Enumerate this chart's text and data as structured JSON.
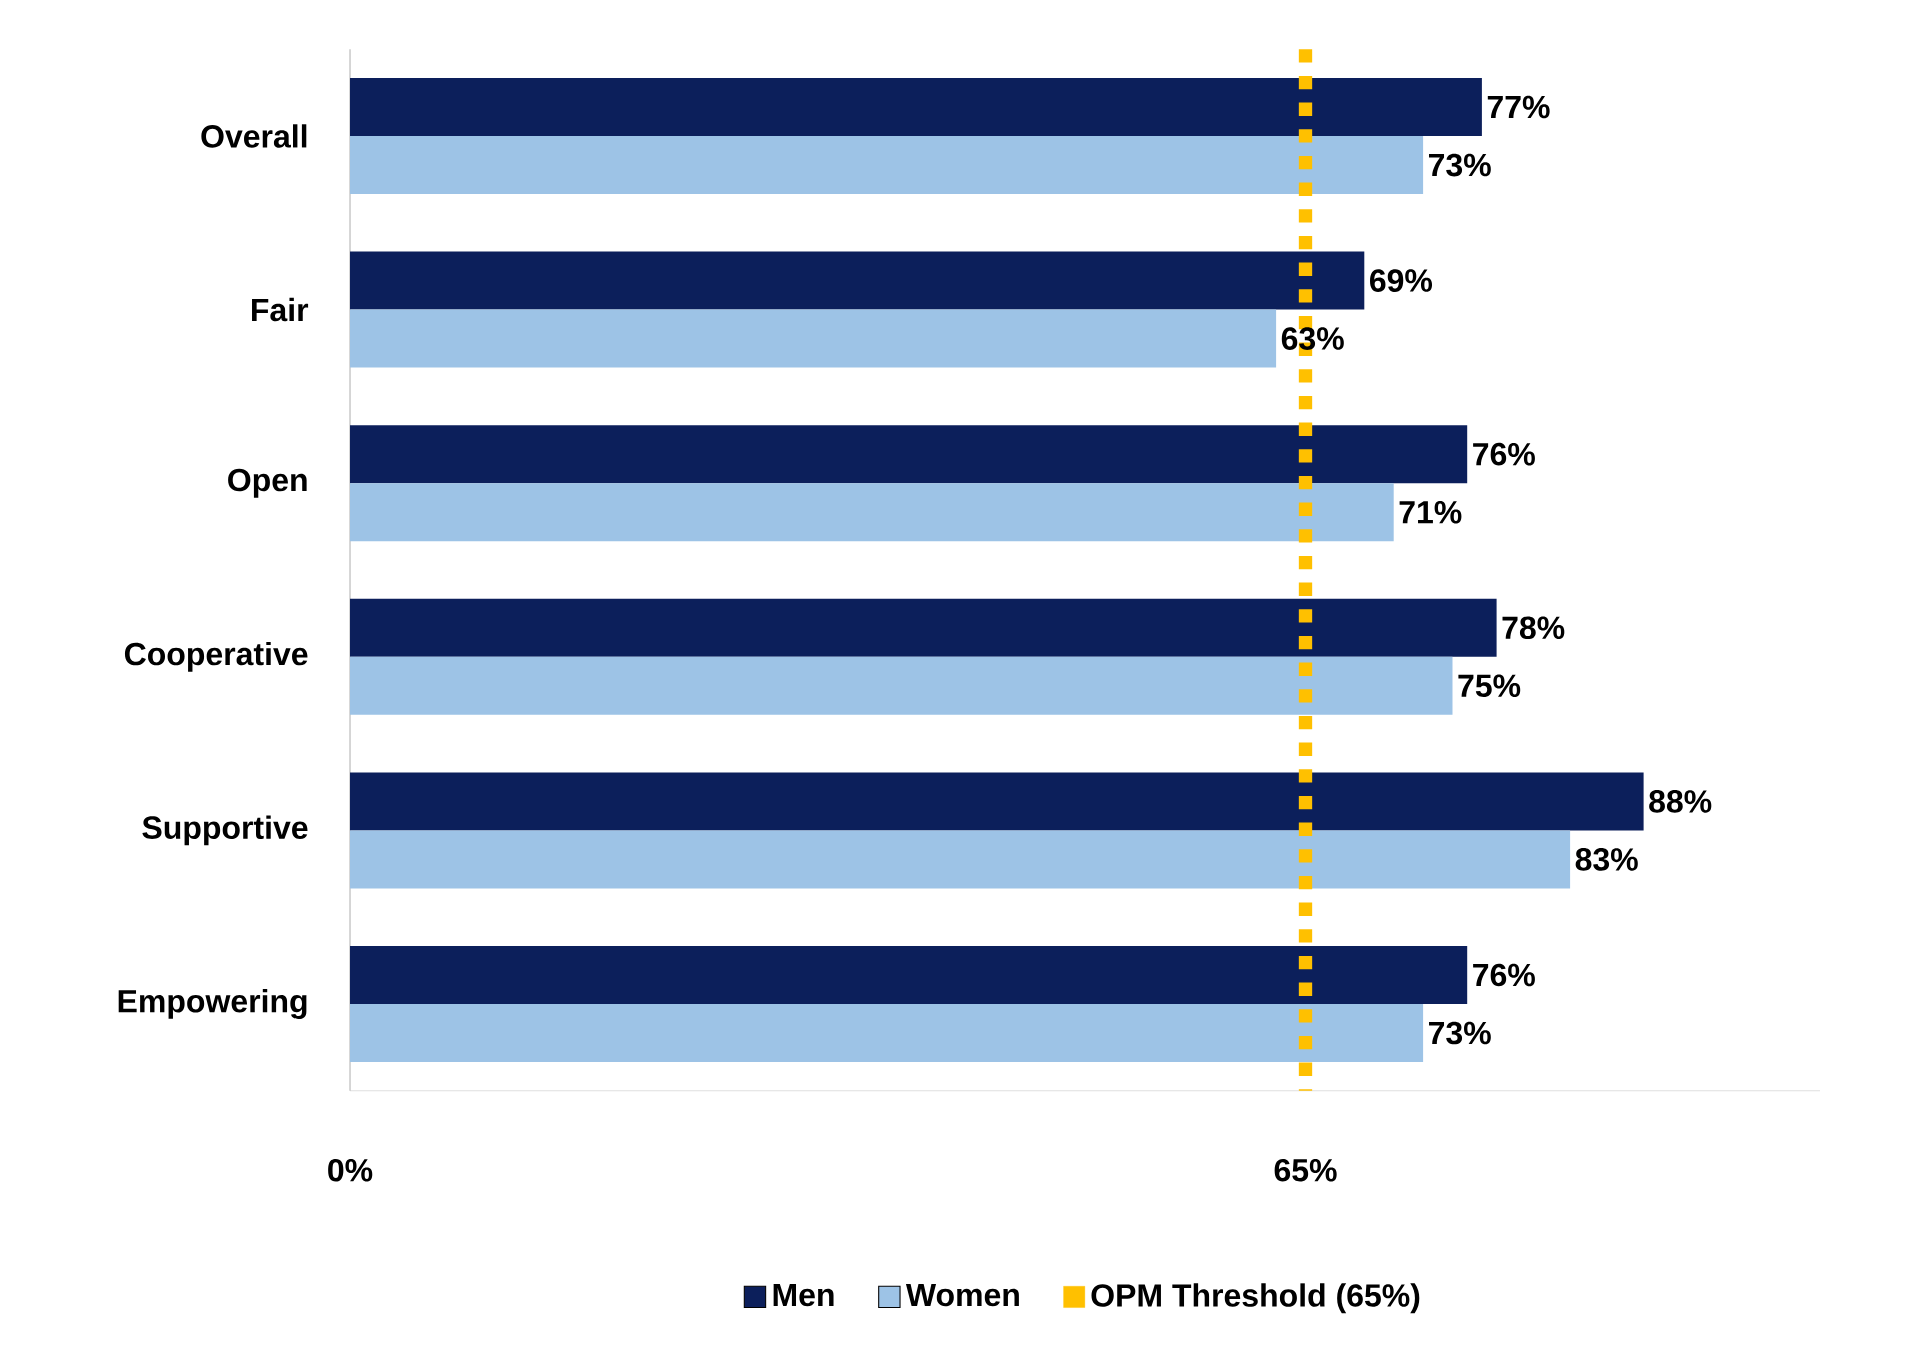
{
  "chart_data": {
    "type": "bar",
    "orientation": "horizontal",
    "categories": [
      "Overall",
      "Fair",
      "Open",
      "Cooperative",
      "Supportive",
      "Empowering"
    ],
    "series": [
      {
        "name": "Men",
        "color": "#0c1f5b",
        "values": [
          77,
          69,
          76,
          78,
          88,
          76
        ],
        "value_labels": [
          "77%",
          "69%",
          "76%",
          "78%",
          "88%",
          "76%"
        ]
      },
      {
        "name": "Women",
        "color": "#9dc3e6",
        "values": [
          73,
          63,
          71,
          75,
          83,
          73
        ],
        "value_labels": [
          "73%",
          "63%",
          "71%",
          "75%",
          "83%",
          "73%"
        ]
      }
    ],
    "xlim": [
      0,
      100
    ],
    "xticks": [
      {
        "value": 0,
        "label": "0%"
      },
      {
        "value": 65,
        "label": "65%"
      }
    ],
    "ref_lines": [
      {
        "axis": "x",
        "value": 65,
        "label": "OPM Threshold (65%)",
        "color": "#ffc000",
        "line_style": "dotted"
      }
    ],
    "legend": "bottom"
  }
}
